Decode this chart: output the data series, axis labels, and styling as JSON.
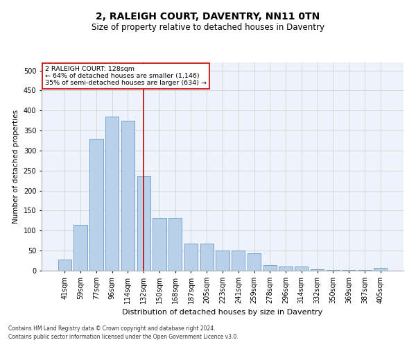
{
  "title": "2, RALEIGH COURT, DAVENTRY, NN11 0TN",
  "subtitle": "Size of property relative to detached houses in Daventry",
  "xlabel": "Distribution of detached houses by size in Daventry",
  "ylabel": "Number of detached properties",
  "categories": [
    "41sqm",
    "59sqm",
    "77sqm",
    "96sqm",
    "114sqm",
    "132sqm",
    "150sqm",
    "168sqm",
    "187sqm",
    "205sqm",
    "223sqm",
    "241sqm",
    "259sqm",
    "278sqm",
    "296sqm",
    "314sqm",
    "332sqm",
    "350sqm",
    "369sqm",
    "387sqm",
    "405sqm"
  ],
  "values": [
    27,
    115,
    330,
    385,
    375,
    235,
    132,
    132,
    68,
    68,
    50,
    50,
    43,
    14,
    10,
    10,
    3,
    2,
    2,
    1,
    7
  ],
  "bar_color": "#b8d0e8",
  "bar_edge_color": "#6899c4",
  "vline_x": 5,
  "vline_color": "#cc0000",
  "annotation_text": "2 RALEIGH COURT: 128sqm\n← 64% of detached houses are smaller (1,146)\n35% of semi-detached houses are larger (634) →",
  "annotation_box_color": "#ffffff",
  "annotation_box_edge": "#cc0000",
  "ylim": [
    0,
    520
  ],
  "yticks": [
    0,
    50,
    100,
    150,
    200,
    250,
    300,
    350,
    400,
    450,
    500
  ],
  "grid_color": "#cccccc",
  "bg_color": "#eef2fa",
  "footer_line1": "Contains HM Land Registry data © Crown copyright and database right 2024.",
  "footer_line2": "Contains public sector information licensed under the Open Government Licence v3.0.",
  "title_fontsize": 10,
  "subtitle_fontsize": 8.5,
  "xlabel_fontsize": 8,
  "ylabel_fontsize": 7.5,
  "tick_fontsize": 7,
  "footer_fontsize": 5.5
}
